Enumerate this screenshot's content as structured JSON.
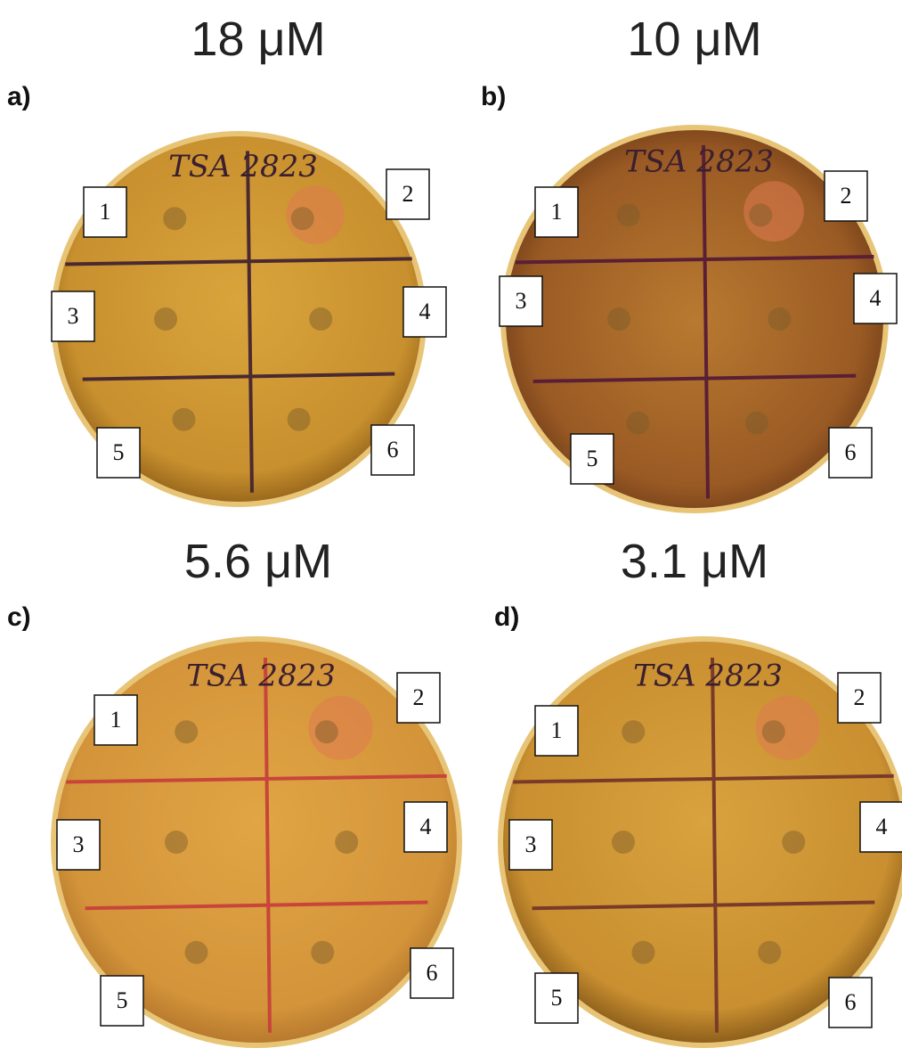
{
  "panels": [
    {
      "label": "a)",
      "title": "18 μM",
      "plate_text": "TSA 2823",
      "markers": [
        "1",
        "2",
        "3",
        "4",
        "5",
        "6"
      ]
    },
    {
      "label": "b)",
      "title": "10 μM",
      "plate_text": "TSA 2823",
      "markers": [
        "1",
        "2",
        "3",
        "4",
        "5",
        "6"
      ]
    },
    {
      "label": "c)",
      "title": "5.6 μM",
      "plate_text": "TSA 2823",
      "markers": [
        "1",
        "2",
        "3",
        "4",
        "5",
        "6"
      ]
    },
    {
      "label": "d)",
      "title": "3.1 μM",
      "plate_text": "TSA 2823",
      "markers": [
        "1",
        "2",
        "3",
        "4",
        "5",
        "6"
      ]
    }
  ]
}
